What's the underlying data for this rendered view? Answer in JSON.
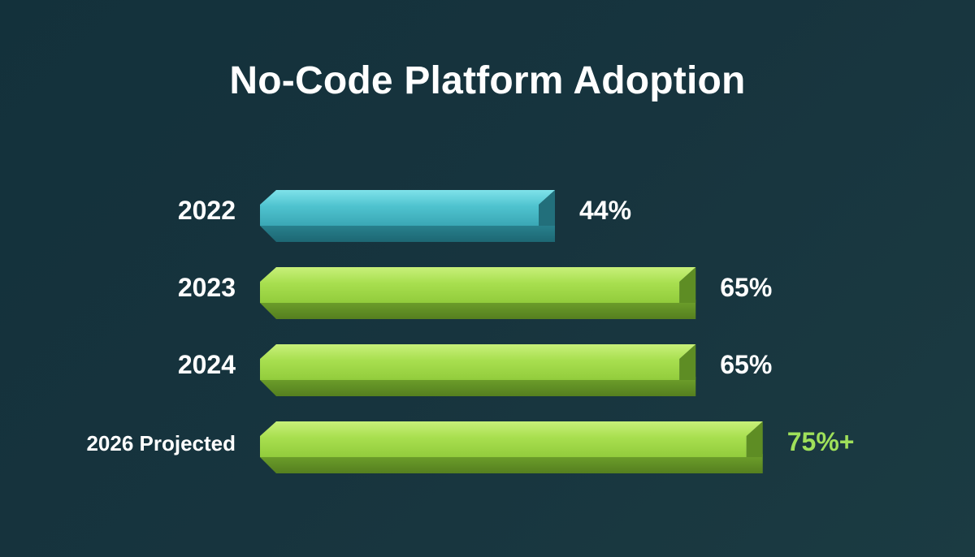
{
  "colors": {
    "background": "#163640",
    "teal": "#4fc3cf",
    "green": "#a4dd4a",
    "projected_label": "#9fe05a",
    "text": "#ffffff"
  },
  "chart_data": {
    "type": "bar",
    "orientation": "horizontal",
    "title": "No-Code Platform Adoption",
    "categories": [
      "2022",
      "2023",
      "2024",
      "2026 Projected"
    ],
    "values": [
      44,
      65,
      65,
      75
    ],
    "value_labels": [
      "44%",
      "65%",
      "65%",
      "75%+"
    ],
    "bar_colors": [
      "teal",
      "green",
      "green",
      "green"
    ],
    "xlim": [
      0,
      100
    ],
    "grid": false,
    "legend": false
  }
}
